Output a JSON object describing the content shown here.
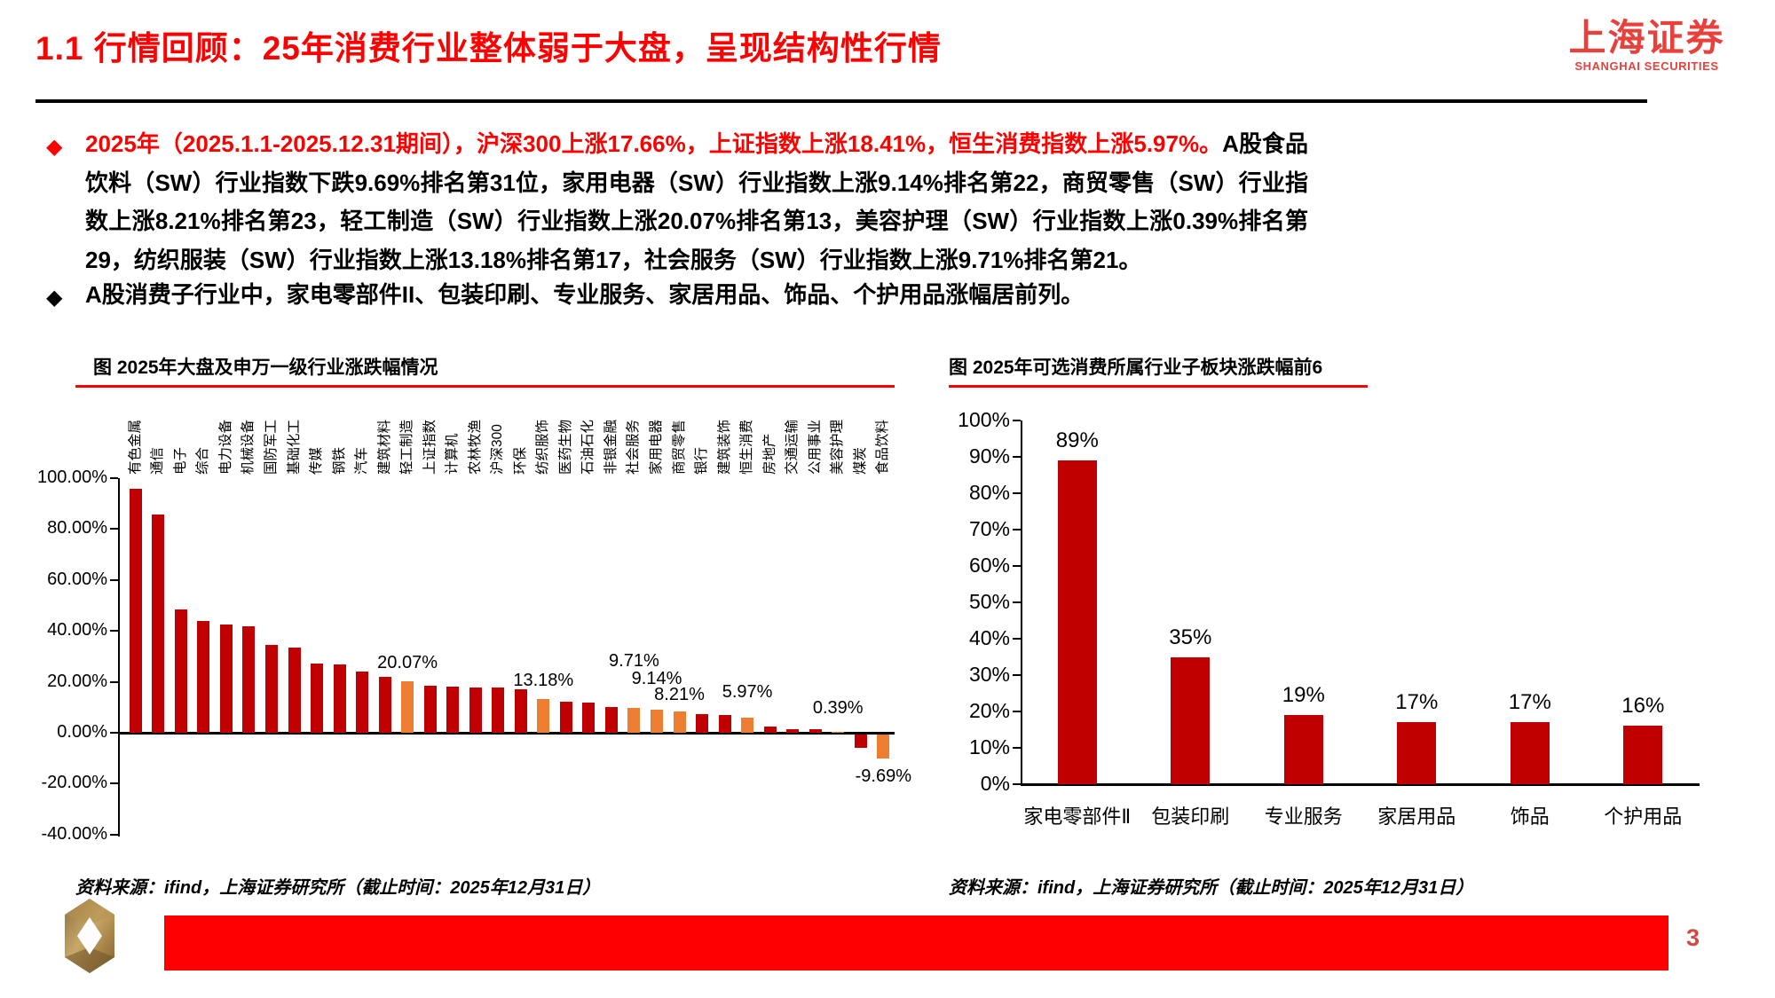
{
  "header": {
    "title": "1.1 行情回顾：25年消费行业整体弱于大盘，呈现结构性行情",
    "logo_cn": "上海证券",
    "logo_en": "SHANGHAI SECURITIES"
  },
  "bullets": [
    {
      "marker": "◆",
      "red_text": "2025年（2025.1.1-2025.12.31期间），沪深300上涨17.66%，上证指数上涨18.41%，恒生消费指数上涨5.97%。",
      "black_text": "A股食品饮料（SW）行业指数下跌9.69%排名第31位，家用电器（SW）行业指数上涨9.14%排名第22，商贸零售（SW）行业指数上涨8.21%排名第23，轻工制造（SW）行业指数上涨20.07%排名第13，美容护理（SW）行业指数上涨0.39%排名第29，纺织服装（SW）行业指数上涨13.18%排名第17，社会服务（SW）行业指数上涨9.71%排名第21。"
    },
    {
      "marker": "◆",
      "black_text": "A股消费子行业中，家电零部件II、包装印刷、专业服务、家居用品、饰品、个护用品涨幅居前列。"
    }
  ],
  "chart_data": [
    {
      "type": "bar",
      "title": "图 2025年大盘及申万一级行业涨跌幅情况",
      "xlabel": "",
      "ylabel": "",
      "ylim": [
        -40,
        100
      ],
      "grid": false,
      "legend": "none",
      "yticks": [
        "100.00%",
        "80.00%",
        "60.00%",
        "40.00%",
        "20.00%",
        "0.00%",
        "-20.00%",
        "-40.00%"
      ],
      "categories": [
        "有色金属",
        "通信",
        "电子",
        "综合",
        "电力设备",
        "机械设备",
        "国防军工",
        "基础化工",
        "传媒",
        "钢铁",
        "汽车",
        "建筑材料",
        "轻工制造",
        "上证指数",
        "计算机",
        "农林牧渔",
        "沪深300",
        "环保",
        "纺织服饰",
        "医药生物",
        "石油石化",
        "非银金融",
        "社会服务",
        "家用电器",
        "商贸零售",
        "银行",
        "建筑装饰",
        "恒生消费",
        "房地产",
        "交通运输",
        "公用事业",
        "美容护理",
        "煤炭",
        "食品饮料"
      ],
      "values": [
        95.8,
        85.7,
        48.5,
        43.9,
        42.4,
        42.0,
        34.6,
        33.4,
        27.3,
        26.8,
        24.2,
        22.0,
        20.07,
        18.41,
        18.1,
        17.9,
        17.66,
        17.0,
        13.18,
        12.1,
        11.8,
        10.2,
        9.71,
        9.14,
        8.21,
        7.3,
        7.1,
        5.97,
        2.6,
        1.3,
        1.3,
        0.39,
        -5.5,
        -9.69
      ],
      "highlight_indices": [
        12,
        18,
        22,
        23,
        24,
        27,
        31,
        33
      ],
      "data_labels": {
        "12": "20.07%",
        "18": "13.18%",
        "22": "9.71%",
        "23": "9.14%",
        "24": "8.21%",
        "27": "5.97%",
        "31": "0.39%",
        "33": "-9.69%"
      },
      "bar_color": "#C00000",
      "highlight_color": "#ED7D31"
    },
    {
      "type": "bar",
      "title": "图 2025年可选消费所属行业子板块涨跌幅前6",
      "xlabel": "",
      "ylabel": "",
      "ylim": [
        0,
        100
      ],
      "grid": false,
      "legend": "none",
      "yticks": [
        "100%",
        "90%",
        "80%",
        "70%",
        "60%",
        "50%",
        "40%",
        "30%",
        "20%",
        "10%",
        "0%"
      ],
      "categories": [
        "家电零部件Ⅱ",
        "包装印刷",
        "专业服务",
        "家居用品",
        "饰品",
        "个护用品"
      ],
      "values": [
        89,
        35,
        19,
        17,
        17,
        16
      ],
      "data_labels": [
        "89%",
        "35%",
        "19%",
        "17%",
        "17%",
        "16%"
      ],
      "bar_color": "#C00000"
    }
  ],
  "sources": {
    "left": "资料来源：ifind，上海证券研究所（截止时间：2025年12月31日）",
    "right": "资料来源：ifind，上海证券研究所（截止时间：2025年12月31日）"
  },
  "footer": {
    "page_number": "3"
  },
  "colors": {
    "title_red": "#FF0000",
    "brand_red": "#E8413C",
    "bar_red": "#C00000",
    "bar_orange": "#ED7D31",
    "footer_bar_red": "#FF0000"
  }
}
